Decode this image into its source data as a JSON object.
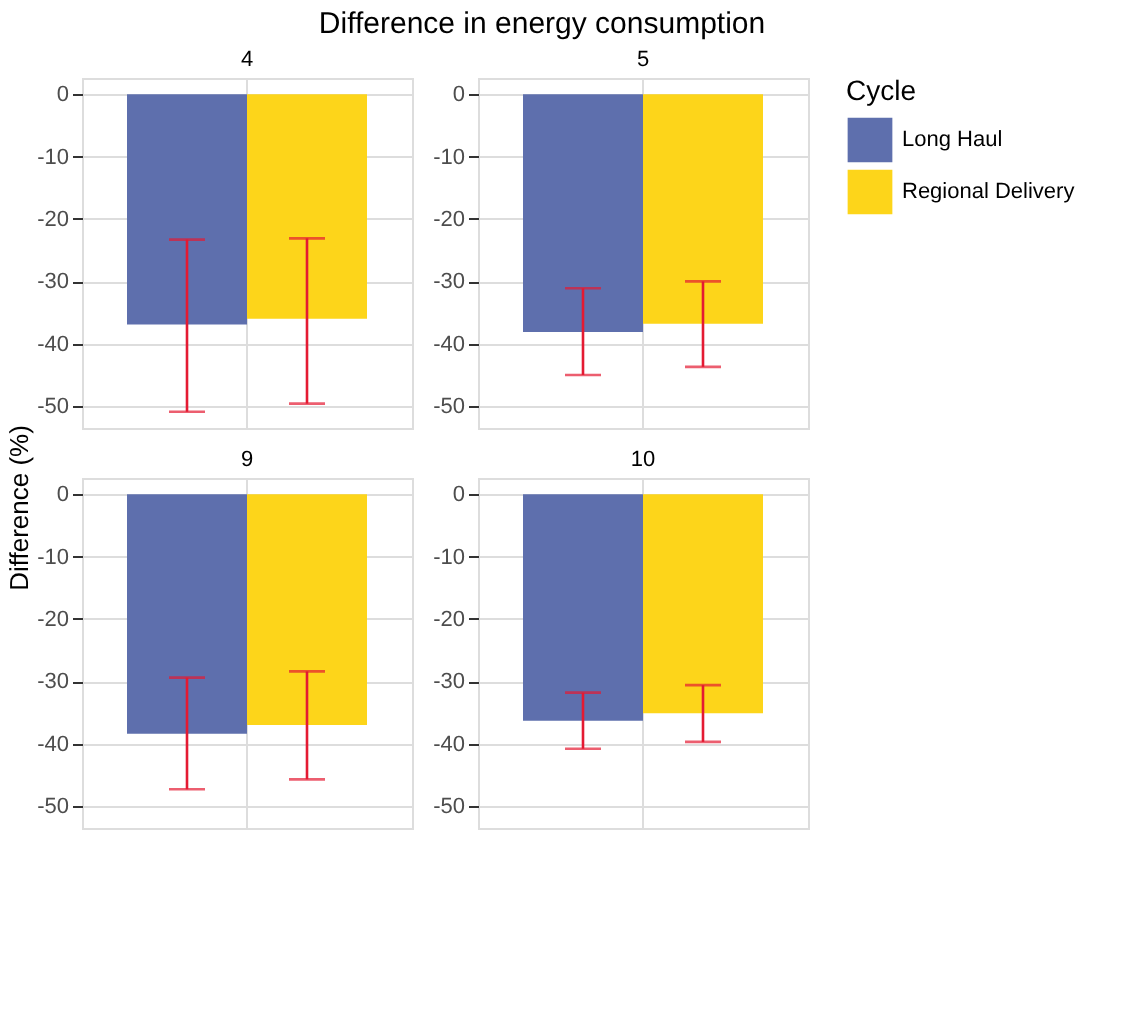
{
  "chart_data": [
    {
      "type": "bar",
      "title": "Difference in energy consumption",
      "subtitle": "4",
      "ylabel": "Difference (%)",
      "legend_title": "Cycle",
      "legend": "right",
      "categories": [
        null
      ],
      "series": [
        {
          "name": "Long Haul",
          "color": "#5e6fad",
          "values": [
            -36.9
          ],
          "errors": [
            [
              -50.9,
              -23.3
            ]
          ]
        },
        {
          "name": "Regional Delivery",
          "color": "#fdd51a",
          "values": [
            -36.0
          ],
          "errors": [
            [
              -49.6,
              -23.1
            ]
          ]
        }
      ],
      "ylim": [
        -53.5,
        2.6
      ],
      "yticks": [
        0,
        -10,
        -20,
        -30,
        -40,
        -50
      ],
      "grid": true,
      "tick_labels": "y"
    },
    {
      "type": "bar",
      "subtitle": "5",
      "categories": [
        null
      ],
      "series": [
        {
          "name": "Long Haul",
          "color": "#5e6fad",
          "values": [
            -38.1
          ],
          "errors": [
            [
              -45.0,
              -31.1
            ]
          ]
        },
        {
          "name": "Regional Delivery",
          "color": "#fdd51a",
          "values": [
            -36.8
          ],
          "errors": [
            [
              -43.7,
              -30.0
            ]
          ]
        }
      ],
      "ylim": [
        -53.5,
        2.6
      ],
      "yticks": [
        0,
        -10,
        -20,
        -30,
        -40,
        -50
      ],
      "grid": true,
      "tick_labels": "y"
    },
    {
      "type": "bar",
      "subtitle": "9",
      "categories": [
        null
      ],
      "series": [
        {
          "name": "Long Haul",
          "color": "#5e6fad",
          "values": [
            -38.4
          ],
          "errors": [
            [
              -47.3,
              -29.4
            ]
          ]
        },
        {
          "name": "Regional Delivery",
          "color": "#fdd51a",
          "values": [
            -37.0
          ],
          "errors": [
            [
              -45.7,
              -28.4
            ]
          ]
        }
      ],
      "ylim": [
        -53.5,
        2.6
      ],
      "yticks": [
        0,
        -10,
        -20,
        -30,
        -40,
        -50
      ],
      "grid": true,
      "tick_labels": "y"
    },
    {
      "type": "bar",
      "subtitle": "10",
      "categories": [
        null
      ],
      "series": [
        {
          "name": "Long Haul",
          "color": "#5e6fad",
          "values": [
            -36.3
          ],
          "errors": [
            [
              -40.8,
              -31.8
            ]
          ]
        },
        {
          "name": "Regional Delivery",
          "color": "#fdd51a",
          "values": [
            -35.1
          ],
          "errors": [
            [
              -39.7,
              -30.6
            ]
          ]
        }
      ],
      "ylim": [
        -53.5,
        2.6
      ],
      "yticks": [
        0,
        -10,
        -20,
        -30,
        -40,
        -50
      ],
      "grid": true,
      "tick_labels": "y"
    }
  ]
}
